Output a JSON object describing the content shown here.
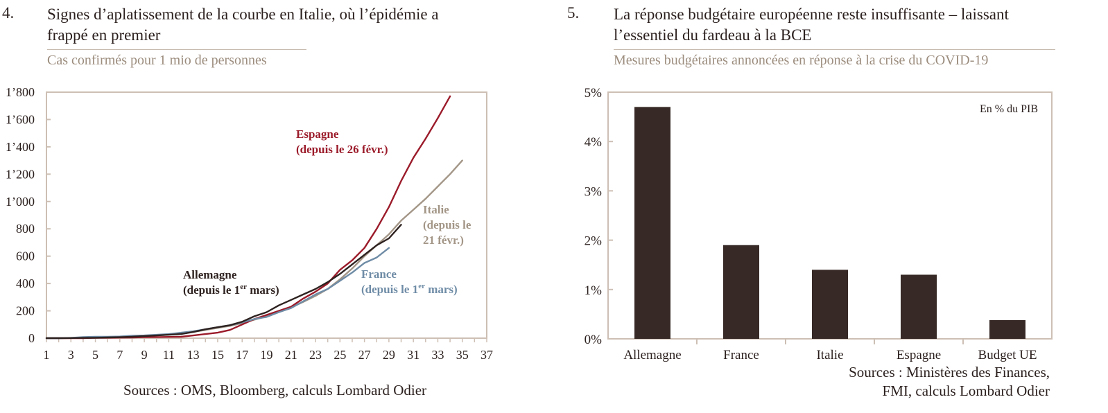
{
  "left": {
    "number": "4.",
    "title_line1": "Signes d’aplatissement de la courbe en Italie, où l’épidémie a",
    "title_line2": "frappé en premier",
    "subtitle": "Cas confirmés pour 1 mio de personnes",
    "source": "Sources : OMS, Bloomberg, calculs Lombard Odier"
  },
  "right": {
    "number": "5.",
    "title_line1": "La réponse budgétaire européenne reste insuffisante – laissant",
    "title_line2": "l’essentiel du fardeau à la BCE",
    "subtitle": "Mesures budgétaires annoncées en réponse à la crise du COVID-19",
    "source_line1": "Sources : Ministères des Finances,",
    "source_line2": "FMI, calculs Lombard Odier"
  },
  "chart_data": [
    {
      "type": "line",
      "xlim": [
        1,
        37
      ],
      "ylim": [
        0,
        1800
      ],
      "x_tick_labels": [
        "1",
        "3",
        "5",
        "7",
        "9",
        "11",
        "13",
        "15",
        "17",
        "19",
        "21",
        "23",
        "25",
        "27",
        "29",
        "31",
        "33",
        "35",
        "37"
      ],
      "y_tick_labels": [
        "0",
        "200",
        "400",
        "600",
        "800",
        "1’000",
        "1’200",
        "1’400",
        "1’600",
        "1’800"
      ],
      "series": [
        {
          "label_line1": "Espagne",
          "label_line2": "(depuis le 26 févr.)",
          "color": "#9b1b2a",
          "x": [
            1,
            2,
            3,
            4,
            5,
            6,
            7,
            8,
            9,
            10,
            11,
            12,
            13,
            14,
            15,
            16,
            17,
            18,
            19,
            20,
            21,
            22,
            23,
            24,
            25,
            26,
            27,
            28,
            29,
            30,
            31,
            32,
            33,
            34
          ],
          "y": [
            0,
            0,
            0,
            0,
            2,
            3,
            4,
            5,
            7,
            8,
            9,
            10,
            20,
            30,
            40,
            60,
            100,
            140,
            170,
            200,
            230,
            290,
            340,
            400,
            500,
            570,
            660,
            800,
            960,
            1150,
            1320,
            1460,
            1610,
            1770
          ]
        },
        {
          "label_line1": "Italie",
          "label_line2": "(depuis le",
          "label_line3": "21 févr.)",
          "color": "#a39687",
          "x": [
            1,
            2,
            3,
            4,
            5,
            6,
            7,
            8,
            9,
            10,
            11,
            12,
            13,
            14,
            15,
            16,
            17,
            18,
            19,
            20,
            21,
            22,
            23,
            24,
            25,
            26,
            27,
            28,
            29,
            30,
            31,
            32,
            33,
            34,
            35
          ],
          "y": [
            0,
            1,
            2,
            3,
            4,
            5,
            6,
            10,
            15,
            20,
            25,
            35,
            45,
            60,
            75,
            90,
            110,
            135,
            160,
            190,
            225,
            265,
            310,
            360,
            430,
            510,
            600,
            680,
            760,
            860,
            940,
            1020,
            1110,
            1200,
            1300
          ]
        },
        {
          "label_line1": "Allemagne",
          "label_line2": "(depuis le 1",
          "label_sup": "er",
          "label_line2_end": " mars)",
          "color": "#2e2220",
          "x": [
            1,
            2,
            3,
            4,
            5,
            6,
            7,
            8,
            9,
            10,
            11,
            12,
            13,
            14,
            15,
            16,
            17,
            18,
            19,
            20,
            21,
            22,
            23,
            24,
            25,
            26,
            27,
            28,
            29,
            30
          ],
          "y": [
            0,
            0,
            1,
            2,
            3,
            5,
            7,
            10,
            15,
            20,
            25,
            30,
            45,
            65,
            80,
            95,
            120,
            160,
            190,
            240,
            280,
            320,
            360,
            410,
            470,
            540,
            610,
            680,
            730,
            830
          ]
        },
        {
          "label_line1": "France",
          "label_line2": "(depuis le 1",
          "label_sup": "er",
          "label_line2_end": " mars)",
          "color": "#6f8ca6",
          "x": [
            1,
            2,
            3,
            4,
            5,
            6,
            7,
            8,
            9,
            10,
            11,
            12,
            13,
            14,
            15,
            16,
            17,
            18,
            19,
            20,
            21,
            22,
            23,
            24,
            25,
            26,
            27,
            28,
            29
          ],
          "y": [
            0,
            0,
            2,
            8,
            10,
            10,
            12,
            18,
            20,
            25,
            30,
            40,
            50,
            65,
            80,
            95,
            115,
            140,
            155,
            190,
            220,
            270,
            320,
            360,
            420,
            480,
            550,
            590,
            660
          ]
        }
      ]
    },
    {
      "type": "bar",
      "categories": [
        "Allemagne",
        "France",
        "Italie",
        "Espagne",
        "Budget UE"
      ],
      "values": [
        4.7,
        1.9,
        1.4,
        1.3,
        0.38
      ],
      "ylim": [
        0,
        5
      ],
      "y_tick_labels": [
        "0%",
        "1%",
        "2%",
        "3%",
        "4%",
        "5%"
      ],
      "annotation": "En % du PIB",
      "bar_color": "#372926"
    }
  ]
}
